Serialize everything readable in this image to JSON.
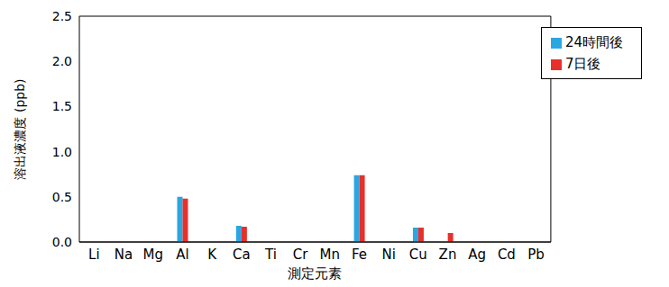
{
  "chart_data": {
    "type": "bar",
    "x_label": "測定元素",
    "y_label": "溶出液濃度 (ppb)",
    "categories": [
      "Li",
      "Na",
      "Mg",
      "Al",
      "K",
      "Ca",
      "Ti",
      "Cr",
      "Mn",
      "Fe",
      "Ni",
      "Cu",
      "Zn",
      "Ag",
      "Cd",
      "Pb"
    ],
    "series": [
      {
        "name": "24時間後",
        "color": "#2aa7e2",
        "values": [
          0,
          0,
          0,
          0.5,
          0,
          0.18,
          0,
          0,
          0,
          0.74,
          0,
          0.16,
          0,
          0,
          0,
          0
        ]
      },
      {
        "name": "7日後",
        "color": "#e8302a",
        "values": [
          0,
          0,
          0,
          0.48,
          0,
          0.17,
          0,
          0,
          0,
          0.74,
          0,
          0.16,
          0.1,
          0,
          0,
          0
        ]
      }
    ],
    "ylim": [
      0,
      2.5
    ],
    "yticks": [
      {
        "value": 0,
        "label": "0.0"
      },
      0.5,
      {
        "value": 1,
        "label": "1.0"
      },
      1.5,
      {
        "value": 2,
        "label": "2.0"
      },
      2.5
    ],
    "grid": true,
    "legend": "upper right"
  }
}
